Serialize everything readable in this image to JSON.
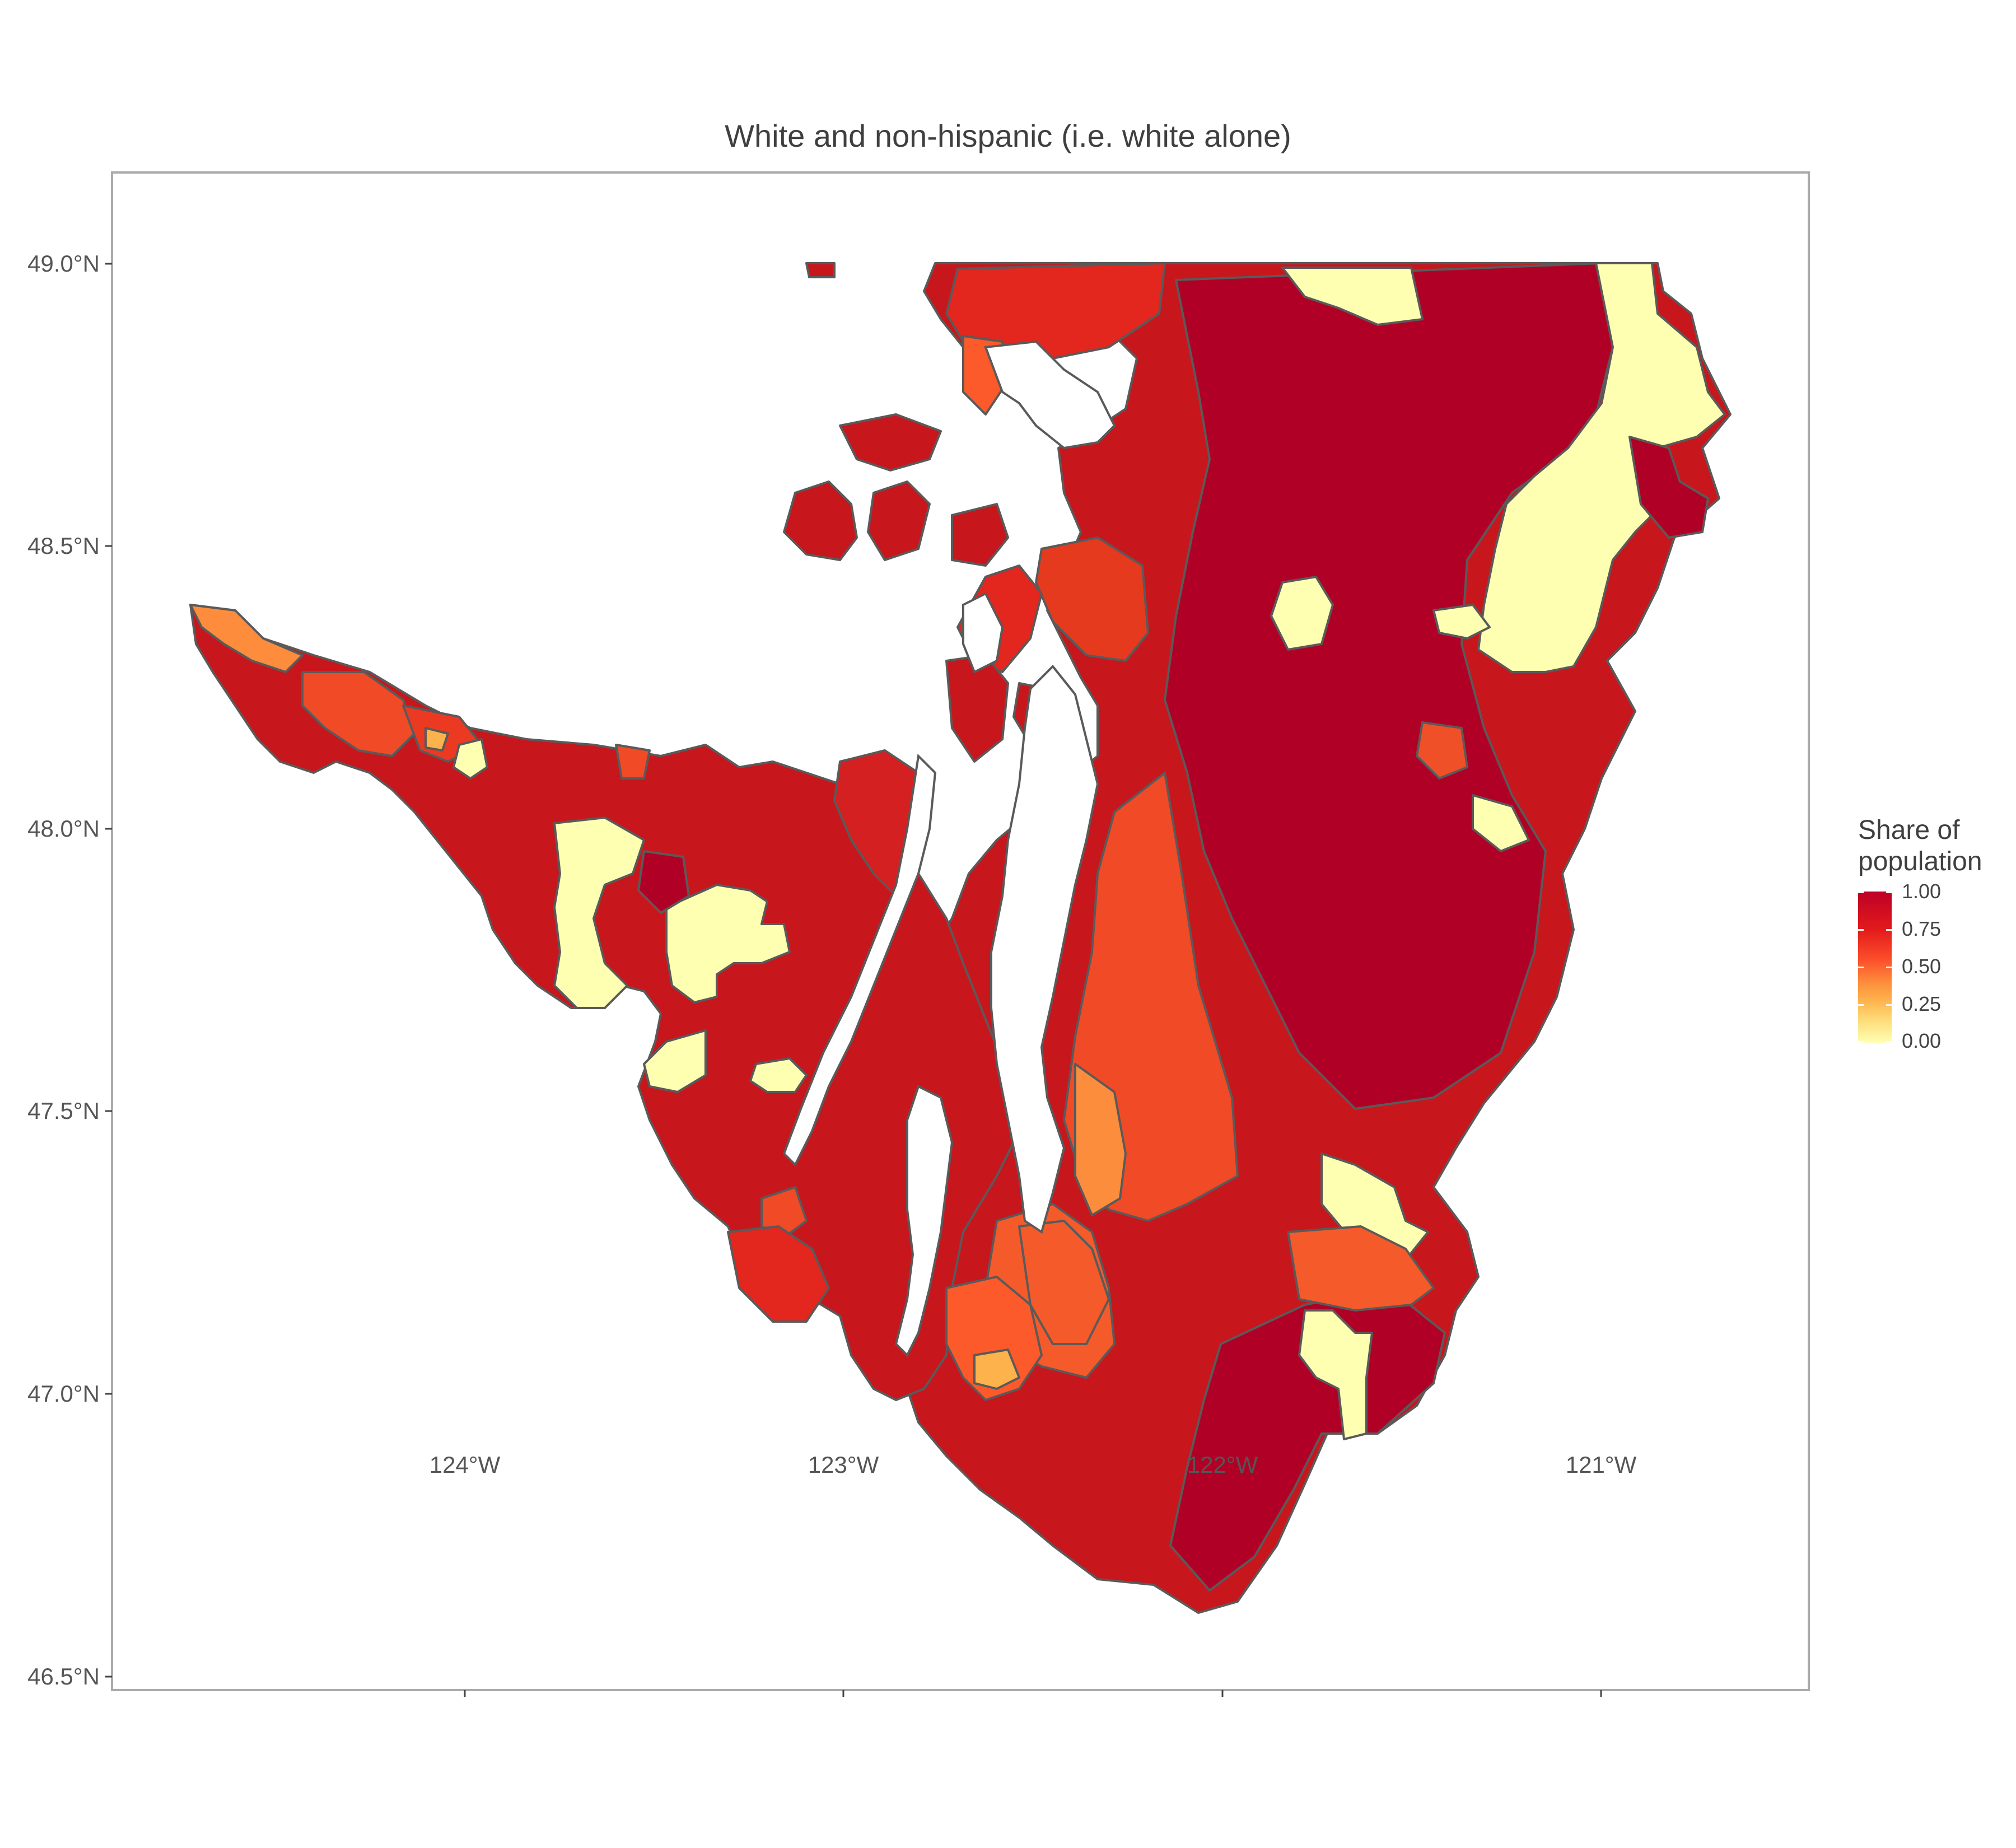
{
  "title": "White and non-hispanic (i.e. white alone)",
  "axes": {
    "y_ticks": [
      "49.0°N",
      "48.5°N",
      "48.0°N",
      "47.5°N",
      "47.0°N",
      "46.5°N"
    ],
    "x_ticks": [
      "124°W",
      "123°W",
      "122°W",
      "121°W"
    ],
    "lat_range": [
      46.48,
      49.16
    ],
    "lon_range": [
      -124.93,
      -120.45
    ]
  },
  "legend": {
    "title_line1": "Share of",
    "title_line2": "population",
    "ticks": [
      "1.00",
      "0.75",
      "0.50",
      "0.25",
      "0.00"
    ],
    "gradient": [
      "#bd0026",
      "#e31a1c",
      "#fc4e2a",
      "#fd8d3c",
      "#feb24c",
      "#fed976",
      "#ffffb2"
    ]
  },
  "colors": {
    "very_high": "#bd0026",
    "high": "#d7191c",
    "mid_high": "#e31a1c",
    "mid": "#f03b20",
    "mid_low": "#fc4e2a",
    "low": "#fd8d3c",
    "lower": "#feb24c",
    "lowest": "#ffffb2",
    "border": "#5a5a5a",
    "panel_border": "#aaaaaa"
  }
}
